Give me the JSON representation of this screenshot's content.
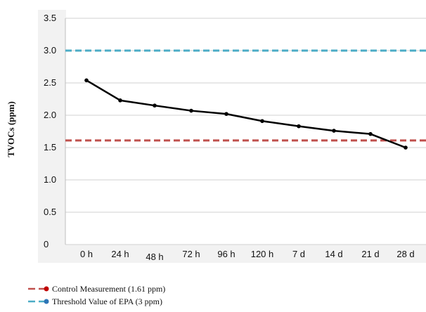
{
  "chart_data": {
    "type": "line",
    "title": "",
    "xlabel": "",
    "ylabel": "TVOCs (ppm)",
    "categories": [
      "0 h",
      "24 h",
      "48 h",
      "72 h",
      "96 h",
      "120 h",
      "7 d",
      "14 d",
      "21 d",
      "28 d"
    ],
    "yticks": [
      "0",
      "0.5",
      "1.0",
      "1.5",
      "2.0",
      "2.5",
      "3.0",
      "3.5"
    ],
    "ylim": [
      0,
      3.5
    ],
    "grid": true,
    "legend_position": "bottom-left",
    "series": [
      {
        "values": [
          2.54,
          2.23,
          2.15,
          2.07,
          2.02,
          1.91,
          1.83,
          1.76,
          1.71,
          1.5
        ],
        "color": "#000000"
      }
    ],
    "reference_lines": [
      {
        "name": "Control Measurement (1.61 ppm)",
        "value": 1.61,
        "color": "#c0504d",
        "marker_color": "#c00000",
        "style": "dashed"
      },
      {
        "name": "Threshold Value of EPA (3 ppm)",
        "value": 3.0,
        "color": "#4bacc6",
        "marker_color": "#2e75b6",
        "style": "dashed"
      }
    ]
  }
}
